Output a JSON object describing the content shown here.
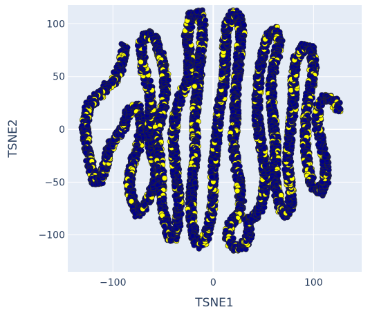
{
  "chart_data": {
    "type": "scatter",
    "xlabel": "TSNE1",
    "ylabel": "TSNE2",
    "xlim": [
      -145,
      148
    ],
    "ylim": [
      -135,
      118
    ],
    "xticks": [
      -100,
      0,
      100
    ],
    "yticks": [
      -100,
      -50,
      0,
      50,
      100
    ],
    "xtick_labels": [
      "−100",
      "0",
      "100"
    ],
    "ytick_labels": [
      "−100",
      "−50",
      "0",
      "50",
      "100"
    ],
    "grid": true,
    "legend": "none",
    "colors": {
      "plot_bg": "#e5ecf6",
      "grid": "#ffffff",
      "marker_a": "#00008b",
      "marker_b": "#ffff00",
      "marker_edge": "#2a2a2a"
    },
    "series": [
      {
        "color": "#00008b",
        "note_values": "serpentine point cloud; polyline vertices in data units",
        "path": [
          [
            -88,
            78
          ],
          [
            -92,
            60
          ],
          [
            -100,
            45
          ],
          [
            -112,
            35
          ],
          [
            -124,
            22
          ],
          [
            -128,
            5
          ],
          [
            -126,
            -15
          ],
          [
            -122,
            -35
          ],
          [
            -118,
            -50
          ],
          [
            -112,
            -48
          ],
          [
            -108,
            -35
          ],
          [
            -104,
            -20
          ],
          [
            -98,
            -8
          ],
          [
            -90,
            0
          ],
          [
            -84,
            18
          ],
          [
            -76,
            22
          ],
          [
            -72,
            10
          ],
          [
            -72,
            -5
          ],
          [
            -76,
            -20
          ],
          [
            -82,
            -38
          ],
          [
            -84,
            -52
          ],
          [
            -80,
            -70
          ],
          [
            -76,
            -80
          ],
          [
            -68,
            -72
          ],
          [
            -60,
            -58
          ],
          [
            -56,
            -40
          ],
          [
            -62,
            -20
          ],
          [
            -64,
            0
          ],
          [
            -62,
            20
          ],
          [
            -64,
            40
          ],
          [
            -70,
            60
          ],
          [
            -72,
            82
          ],
          [
            -66,
            90
          ],
          [
            -58,
            86
          ],
          [
            -52,
            70
          ],
          [
            -48,
            50
          ],
          [
            -48,
            30
          ],
          [
            -52,
            12
          ],
          [
            -56,
            -5
          ],
          [
            -54,
            -25
          ],
          [
            -52,
            -45
          ],
          [
            -52,
            -65
          ],
          [
            -48,
            -85
          ],
          [
            -44,
            -102
          ],
          [
            -40,
            -104
          ],
          [
            -36,
            -90
          ],
          [
            -34,
            -70
          ],
          [
            -36,
            -50
          ],
          [
            -38,
            -30
          ],
          [
            -40,
            -10
          ],
          [
            -38,
            10
          ],
          [
            -34,
            28
          ],
          [
            -28,
            40
          ],
          [
            -24,
            52
          ],
          [
            -24,
            72
          ],
          [
            -26,
            90
          ],
          [
            -22,
            108
          ],
          [
            -14,
            110
          ],
          [
            -10,
            96
          ],
          [
            -12,
            76
          ],
          [
            -14,
            56
          ],
          [
            -16,
            36
          ],
          [
            -18,
            16
          ],
          [
            -18,
            -4
          ],
          [
            -18,
            -24
          ],
          [
            -20,
            -44
          ],
          [
            -22,
            -64
          ],
          [
            -22,
            -84
          ],
          [
            -18,
            -104
          ],
          [
            -12,
            -110
          ],
          [
            -6,
            -98
          ],
          [
            -2,
            -80
          ],
          [
            0,
            -60
          ],
          [
            0,
            -40
          ],
          [
            2,
            -20
          ],
          [
            4,
            0
          ],
          [
            6,
            20
          ],
          [
            10,
            40
          ],
          [
            12,
            60
          ],
          [
            12,
            80
          ],
          [
            14,
            100
          ],
          [
            20,
            110
          ],
          [
            26,
            106
          ],
          [
            28,
            90
          ],
          [
            26,
            70
          ],
          [
            24,
            50
          ],
          [
            22,
            30
          ],
          [
            22,
            10
          ],
          [
            20,
            -10
          ],
          [
            22,
            -30
          ],
          [
            26,
            -50
          ],
          [
            28,
            -70
          ],
          [
            24,
            -82
          ],
          [
            18,
            -88
          ],
          [
            14,
            -100
          ],
          [
            20,
            -112
          ],
          [
            28,
            -112
          ],
          [
            34,
            -106
          ],
          [
            36,
            -98
          ],
          [
            34,
            -88
          ],
          [
            40,
            -84
          ],
          [
            46,
            -76
          ],
          [
            50,
            -64
          ],
          [
            52,
            -46
          ],
          [
            50,
            -26
          ],
          [
            46,
            -6
          ],
          [
            44,
            14
          ],
          [
            44,
            34
          ],
          [
            46,
            54
          ],
          [
            50,
            74
          ],
          [
            56,
            90
          ],
          [
            62,
            94
          ],
          [
            66,
            84
          ],
          [
            62,
            66
          ],
          [
            58,
            48
          ],
          [
            58,
            28
          ],
          [
            60,
            8
          ],
          [
            62,
            -12
          ],
          [
            62,
            -32
          ],
          [
            62,
            -52
          ],
          [
            66,
            -72
          ],
          [
            72,
            -82
          ],
          [
            78,
            -72
          ],
          [
            76,
            -52
          ],
          [
            74,
            -32
          ],
          [
            76,
            -12
          ],
          [
            78,
            8
          ],
          [
            80,
            28
          ],
          [
            80,
            48
          ],
          [
            82,
            66
          ],
          [
            90,
            78
          ],
          [
            98,
            76
          ],
          [
            100,
            62
          ],
          [
            98,
            44
          ],
          [
            94,
            26
          ],
          [
            92,
            6
          ],
          [
            92,
            -14
          ],
          [
            94,
            -34
          ],
          [
            98,
            -52
          ],
          [
            106,
            -60
          ],
          [
            112,
            -50
          ],
          [
            112,
            -30
          ],
          [
            108,
            -14
          ],
          [
            104,
            4
          ],
          [
            104,
            20
          ],
          [
            110,
            30
          ],
          [
            120,
            28
          ],
          [
            126,
            18
          ]
        ]
      }
    ]
  }
}
